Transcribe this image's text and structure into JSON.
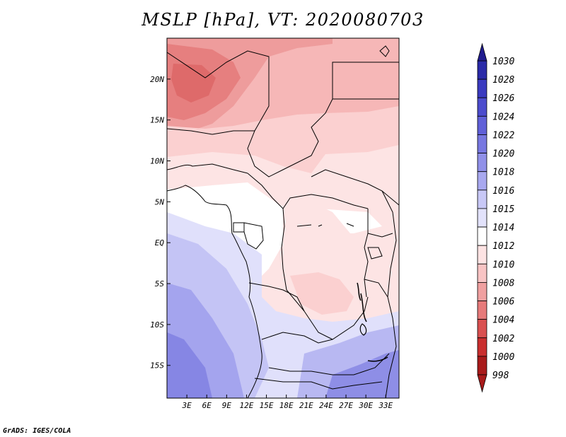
{
  "title": "MSLP [hPa], VT: 2020080703",
  "credit": "GrADS: IGES/COLA",
  "map": {
    "lon_range": [
      0,
      35
    ],
    "lat_range": [
      -19,
      25
    ],
    "x_ticks": [
      "3E",
      "6E",
      "9E",
      "12E",
      "15E",
      "18E",
      "21E",
      "24E",
      "27E",
      "30E",
      "33E"
    ],
    "x_tick_values": [
      3,
      6,
      9,
      12,
      15,
      18,
      21,
      24,
      27,
      30,
      33
    ],
    "y_ticks": [
      "20N",
      "15N",
      "10N",
      "5N",
      "EQ",
      "5S",
      "10S",
      "15S"
    ],
    "y_tick_values": [
      20,
      15,
      10,
      5,
      0,
      -5,
      -10,
      -15
    ]
  },
  "colorbar": {
    "levels": [
      "1030",
      "1028",
      "1026",
      "1024",
      "1022",
      "1020",
      "1018",
      "1016",
      "1015",
      "1014",
      "1012",
      "1010",
      "1008",
      "1006",
      "1004",
      "1002",
      "1000",
      "998"
    ],
    "colors": [
      "#201c8e",
      "#2a2aa8",
      "#3a3abf",
      "#4c4ccd",
      "#6060d8",
      "#7777e0",
      "#9090e8",
      "#a8a8ef",
      "#c8c8f6",
      "#e2e2fb",
      "#ffffff",
      "#fde3e3",
      "#f8c4c4",
      "#f0a0a0",
      "#e67a7a",
      "#d95050",
      "#c92e2e",
      "#a81a1a"
    ]
  }
}
